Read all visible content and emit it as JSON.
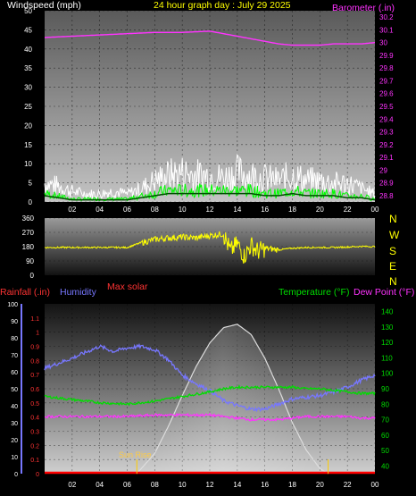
{
  "header": {
    "wind_title": "Windspeed (mph)",
    "graph_title": "24 hour graph day : July 29 2025",
    "baro_title": "Barometer (.in)"
  },
  "compass": [
    "N",
    "W",
    "S",
    "E",
    "N"
  ],
  "bottom_header": {
    "rain_title": "Rainfall (.in)",
    "humidity_title": "Humidity",
    "solar_title": "Max solar",
    "temp_title": "Temperature (°F)",
    "dew_title": "Dew Point (°F)",
    "sunrise_label": "Sun Rise"
  },
  "colors": {
    "wind_gust": "#ffffff",
    "wind_avg": "#00ff00",
    "wind_dark": "#005000",
    "barometer": "#ff33ff",
    "direction": "#ffff00",
    "humidity": "#7777ff",
    "temperature": "#00dd00",
    "dewpoint": "#ff33ff",
    "solar": "#dddddd",
    "rain": "#ff0000",
    "title": "#ffff00"
  },
  "chart_data": [
    {
      "type": "line",
      "x_ticks": [
        "02",
        "04",
        "06",
        "08",
        "10",
        "12",
        "14",
        "16",
        "18",
        "20",
        "22",
        "00"
      ],
      "y_left_ticks": [
        "0",
        "5",
        "10",
        "15",
        "20",
        "25",
        "30",
        "35",
        "40",
        "45",
        "50"
      ],
      "y_right_ticks": [
        "28.8",
        "28.9",
        "29",
        "29.1",
        "29.2",
        "29.3",
        "29.4",
        "29.5",
        "29.6",
        "29.7",
        "29.8",
        "29.9",
        "30",
        "30.1",
        "30.2"
      ],
      "ylim_left": [
        0,
        50
      ],
      "ylim_right": [
        28.75,
        30.25
      ],
      "series": [
        {
          "name": "Windspeed (mph)",
          "role": "gust",
          "hours": [
            0,
            1,
            2,
            3,
            4,
            5,
            6,
            7,
            8,
            9,
            10,
            11,
            12,
            13,
            14,
            15,
            16,
            17,
            18,
            19,
            20,
            21,
            22,
            23,
            24
          ],
          "values": [
            7,
            6,
            4,
            3,
            3,
            4,
            3,
            5,
            8,
            10,
            11,
            10,
            10,
            9,
            11,
            10,
            9,
            8,
            10,
            8,
            8,
            7,
            7,
            5,
            3
          ]
        },
        {
          "name": "Windspeed (mph)",
          "role": "average",
          "hours": [
            0,
            1,
            2,
            3,
            4,
            5,
            6,
            7,
            8,
            9,
            10,
            11,
            12,
            13,
            14,
            15,
            16,
            17,
            18,
            19,
            20,
            21,
            22,
            23,
            24
          ],
          "values": [
            3,
            2,
            1,
            1,
            1,
            1,
            1,
            2,
            3,
            4,
            4,
            4,
            4,
            4,
            4,
            4,
            3,
            3,
            4,
            3,
            3,
            3,
            2,
            2,
            1
          ]
        },
        {
          "name": "Barometer (.in)",
          "hours": [
            0,
            2,
            4,
            6,
            8,
            10,
            12,
            13,
            14,
            15,
            16,
            17,
            18,
            19,
            20,
            21,
            22,
            23,
            24
          ],
          "values": [
            30.04,
            30.05,
            30.06,
            30.07,
            30.08,
            30.08,
            30.09,
            30.07,
            30.05,
            30.03,
            30.01,
            29.99,
            29.98,
            29.98,
            29.98,
            29.99,
            29.99,
            29.99,
            30.0
          ]
        }
      ]
    },
    {
      "type": "scatter",
      "y_ticks": [
        "360",
        "270",
        "180",
        "90",
        "0"
      ],
      "ylim": [
        0,
        360
      ],
      "series": [
        {
          "name": "Wind direction",
          "hours": [
            0,
            2,
            4,
            6,
            7,
            8,
            9,
            10,
            11,
            12,
            13,
            13.5,
            14,
            14.5,
            15,
            15.5,
            16,
            17,
            18,
            19,
            20,
            21,
            22,
            23,
            24
          ],
          "values": [
            175,
            175,
            175,
            175,
            205,
            225,
            235,
            240,
            235,
            250,
            260,
            150,
            200,
            120,
            190,
            150,
            170,
            160,
            170,
            175,
            175,
            175,
            178,
            182,
            180
          ]
        }
      ]
    },
    {
      "type": "line",
      "x_ticks": [
        "02",
        "04",
        "06",
        "08",
        "10",
        "12",
        "14",
        "16",
        "18",
        "20",
        "22",
        "00"
      ],
      "y_left_rain_ticks": [
        "0",
        "0.1",
        "0.2",
        "0.3",
        "0.4",
        "0.5",
        "0.6",
        "0.7",
        "0.8",
        "0.9",
        "1",
        "1.1"
      ],
      "y_left_humidity_ticks": [
        "0",
        "10",
        "20",
        "30",
        "40",
        "50",
        "60",
        "70",
        "80",
        "90",
        "100"
      ],
      "y_right_ticks": [
        "40",
        "50",
        "60",
        "70",
        "80",
        "90",
        "100",
        "110",
        "120",
        "130",
        "140"
      ],
      "ylim_humidity": [
        0,
        100
      ],
      "ylim_temp": [
        35,
        145
      ],
      "series": [
        {
          "name": "Humidity",
          "hours": [
            0,
            2,
            4,
            5,
            6,
            7,
            8,
            9,
            10,
            11,
            12,
            13,
            14,
            15,
            16,
            17,
            18,
            19,
            20,
            21,
            22,
            23,
            24
          ],
          "values": [
            62,
            68,
            75,
            72,
            74,
            75,
            73,
            67,
            58,
            53,
            49,
            43,
            40,
            38,
            38,
            41,
            44,
            45,
            46,
            48,
            51,
            55,
            58
          ]
        },
        {
          "name": "Temperature (°F)",
          "hours": [
            0,
            2,
            4,
            6,
            8,
            10,
            12,
            13,
            14,
            15,
            16,
            17,
            18,
            19,
            20,
            21,
            22,
            23,
            24
          ],
          "values": [
            85,
            83,
            81,
            80,
            82,
            85,
            88,
            90,
            91,
            91,
            91,
            91,
            91,
            90,
            90,
            89,
            88,
            87,
            87
          ]
        },
        {
          "name": "Dew Point (°F)",
          "hours": [
            0,
            2,
            4,
            6,
            8,
            10,
            12,
            13,
            14,
            15,
            16,
            17,
            18,
            19,
            20,
            21,
            22,
            23,
            24
          ],
          "values": [
            72,
            72,
            72,
            72,
            73,
            73,
            73,
            72,
            71,
            70,
            70,
            70,
            71,
            72,
            72,
            72,
            72,
            71,
            71
          ]
        },
        {
          "name": "Max solar",
          "hours": [
            6.7,
            8,
            9,
            10,
            11,
            12,
            13,
            14,
            15,
            16,
            17,
            18,
            19,
            20,
            20.6
          ],
          "values": [
            0,
            12,
            28,
            46,
            63,
            77,
            86,
            88,
            82,
            68,
            50,
            30,
            14,
            3,
            0
          ]
        },
        {
          "name": "Rainfall (.in)",
          "hours": [
            0,
            24
          ],
          "values": [
            0,
            0
          ]
        }
      ],
      "sunrise_hour": 6.7,
      "sunset_hour": 20.6
    }
  ]
}
